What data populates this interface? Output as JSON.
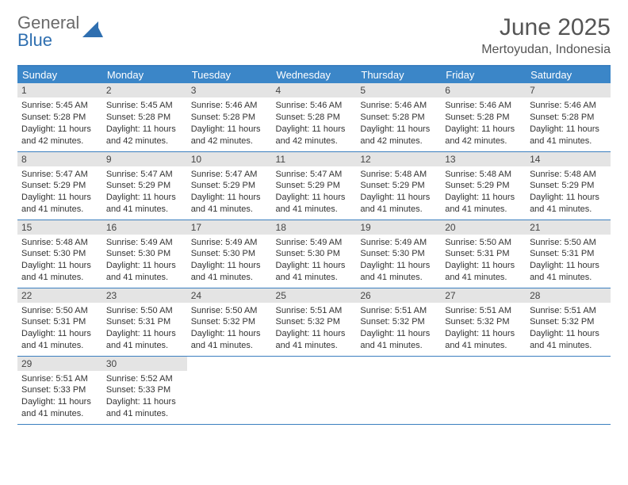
{
  "brand": {
    "part1": "General",
    "part2": "Blue"
  },
  "title": "June 2025",
  "location": "Mertoyudan, Indonesia",
  "colors": {
    "header_bg": "#3b86c8",
    "header_text": "#ffffff",
    "row_border": "#3b7fbf",
    "daynum_bg": "#e4e4e4",
    "text": "#333333",
    "brand_gray": "#6a6a6a",
    "brand_blue": "#2f6fb0"
  },
  "weekdays": [
    "Sunday",
    "Monday",
    "Tuesday",
    "Wednesday",
    "Thursday",
    "Friday",
    "Saturday"
  ],
  "weeks": [
    [
      {
        "n": "1",
        "sr": "5:45 AM",
        "ss": "5:28 PM",
        "dl": "11 hours and 42 minutes."
      },
      {
        "n": "2",
        "sr": "5:45 AM",
        "ss": "5:28 PM",
        "dl": "11 hours and 42 minutes."
      },
      {
        "n": "3",
        "sr": "5:46 AM",
        "ss": "5:28 PM",
        "dl": "11 hours and 42 minutes."
      },
      {
        "n": "4",
        "sr": "5:46 AM",
        "ss": "5:28 PM",
        "dl": "11 hours and 42 minutes."
      },
      {
        "n": "5",
        "sr": "5:46 AM",
        "ss": "5:28 PM",
        "dl": "11 hours and 42 minutes."
      },
      {
        "n": "6",
        "sr": "5:46 AM",
        "ss": "5:28 PM",
        "dl": "11 hours and 42 minutes."
      },
      {
        "n": "7",
        "sr": "5:46 AM",
        "ss": "5:28 PM",
        "dl": "11 hours and 41 minutes."
      }
    ],
    [
      {
        "n": "8",
        "sr": "5:47 AM",
        "ss": "5:29 PM",
        "dl": "11 hours and 41 minutes."
      },
      {
        "n": "9",
        "sr": "5:47 AM",
        "ss": "5:29 PM",
        "dl": "11 hours and 41 minutes."
      },
      {
        "n": "10",
        "sr": "5:47 AM",
        "ss": "5:29 PM",
        "dl": "11 hours and 41 minutes."
      },
      {
        "n": "11",
        "sr": "5:47 AM",
        "ss": "5:29 PM",
        "dl": "11 hours and 41 minutes."
      },
      {
        "n": "12",
        "sr": "5:48 AM",
        "ss": "5:29 PM",
        "dl": "11 hours and 41 minutes."
      },
      {
        "n": "13",
        "sr": "5:48 AM",
        "ss": "5:29 PM",
        "dl": "11 hours and 41 minutes."
      },
      {
        "n": "14",
        "sr": "5:48 AM",
        "ss": "5:29 PM",
        "dl": "11 hours and 41 minutes."
      }
    ],
    [
      {
        "n": "15",
        "sr": "5:48 AM",
        "ss": "5:30 PM",
        "dl": "11 hours and 41 minutes."
      },
      {
        "n": "16",
        "sr": "5:49 AM",
        "ss": "5:30 PM",
        "dl": "11 hours and 41 minutes."
      },
      {
        "n": "17",
        "sr": "5:49 AM",
        "ss": "5:30 PM",
        "dl": "11 hours and 41 minutes."
      },
      {
        "n": "18",
        "sr": "5:49 AM",
        "ss": "5:30 PM",
        "dl": "11 hours and 41 minutes."
      },
      {
        "n": "19",
        "sr": "5:49 AM",
        "ss": "5:30 PM",
        "dl": "11 hours and 41 minutes."
      },
      {
        "n": "20",
        "sr": "5:50 AM",
        "ss": "5:31 PM",
        "dl": "11 hours and 41 minutes."
      },
      {
        "n": "21",
        "sr": "5:50 AM",
        "ss": "5:31 PM",
        "dl": "11 hours and 41 minutes."
      }
    ],
    [
      {
        "n": "22",
        "sr": "5:50 AM",
        "ss": "5:31 PM",
        "dl": "11 hours and 41 minutes."
      },
      {
        "n": "23",
        "sr": "5:50 AM",
        "ss": "5:31 PM",
        "dl": "11 hours and 41 minutes."
      },
      {
        "n": "24",
        "sr": "5:50 AM",
        "ss": "5:32 PM",
        "dl": "11 hours and 41 minutes."
      },
      {
        "n": "25",
        "sr": "5:51 AM",
        "ss": "5:32 PM",
        "dl": "11 hours and 41 minutes."
      },
      {
        "n": "26",
        "sr": "5:51 AM",
        "ss": "5:32 PM",
        "dl": "11 hours and 41 minutes."
      },
      {
        "n": "27",
        "sr": "5:51 AM",
        "ss": "5:32 PM",
        "dl": "11 hours and 41 minutes."
      },
      {
        "n": "28",
        "sr": "5:51 AM",
        "ss": "5:32 PM",
        "dl": "11 hours and 41 minutes."
      }
    ],
    [
      {
        "n": "29",
        "sr": "5:51 AM",
        "ss": "5:33 PM",
        "dl": "11 hours and 41 minutes."
      },
      {
        "n": "30",
        "sr": "5:52 AM",
        "ss": "5:33 PM",
        "dl": "11 hours and 41 minutes."
      },
      null,
      null,
      null,
      null,
      null
    ]
  ],
  "labels": {
    "sunrise": "Sunrise:",
    "sunset": "Sunset:",
    "daylight": "Daylight:"
  }
}
